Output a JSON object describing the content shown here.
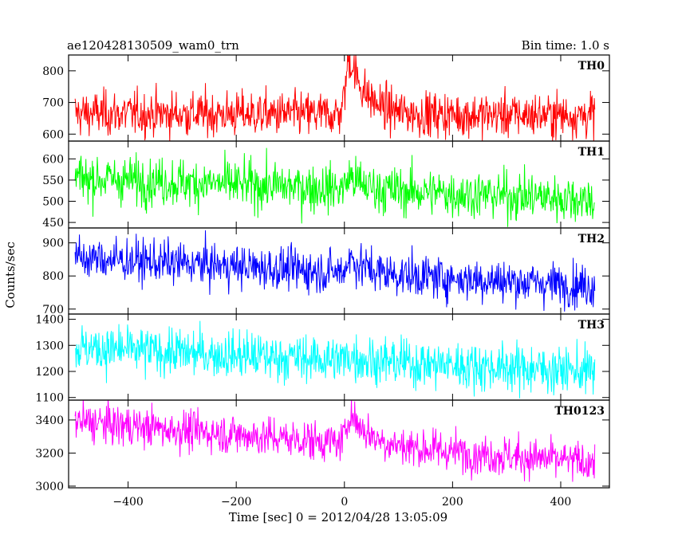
{
  "header": {
    "title": "ae120428130509_wam0_trn",
    "bin_time": "Bin time: 1.0 s"
  },
  "chart_data": {
    "type": "line",
    "title": "ae120428130509_wam0_trn",
    "subtitle": "Bin time: 1.0 s",
    "xlabel": "Time [sec] 0 = 2012/04/28 13:05:09",
    "ylabel": "Counts/sec",
    "xlim": [
      -510,
      490
    ],
    "x_ticks": [
      -400,
      -200,
      0,
      200,
      400
    ],
    "x_tick_labels": [
      "−400",
      "−200",
      "0",
      "200",
      "400"
    ],
    "x_range_data": [
      -498,
      463
    ],
    "legend": "none",
    "grid": false,
    "panels": [
      {
        "name": "TH0",
        "color": "#ff0000",
        "ylim": [
          578,
          850
        ],
        "yticks": [
          600,
          700,
          800
        ],
        "base_start": 665,
        "base_end": 660,
        "noise": 35,
        "peak": {
          "time": 10,
          "amplitude": 180,
          "rise": 10,
          "decay": 30
        }
      },
      {
        "name": "TH1",
        "color": "#00ff00",
        "ylim": [
          437,
          642
        ],
        "yticks": [
          450,
          500,
          550,
          600
        ],
        "base_start": 555,
        "base_end": 505,
        "noise": 28,
        "peak": {
          "time": 10,
          "amplitude": 30,
          "rise": 8,
          "decay": 25
        }
      },
      {
        "name": "TH2",
        "color": "#0000ff",
        "ylim": [
          685,
          945
        ],
        "yticks": [
          700,
          800,
          900
        ],
        "base_start": 855,
        "base_end": 770,
        "noise": 32,
        "peak": {
          "time": 10,
          "amplitude": 45,
          "rise": 8,
          "decay": 30
        }
      },
      {
        "name": "TH3",
        "color": "#00ffff",
        "ylim": [
          1090,
          1420
        ],
        "yticks": [
          1100,
          1200,
          1300,
          1400
        ],
        "base_start": 1290,
        "base_end": 1200,
        "noise": 45,
        "peak": {
          "time": 10,
          "amplitude": 20,
          "rise": 8,
          "decay": 25
        }
      },
      {
        "name": "TH0123",
        "color": "#ff00ff",
        "ylim": [
          2990,
          3520
        ],
        "yticks": [
          3000,
          3200,
          3400
        ],
        "base_start": 3390,
        "base_end": 3140,
        "noise": 60,
        "peak": {
          "time": 10,
          "amplitude": 190,
          "rise": 8,
          "decay": 35
        }
      }
    ]
  }
}
